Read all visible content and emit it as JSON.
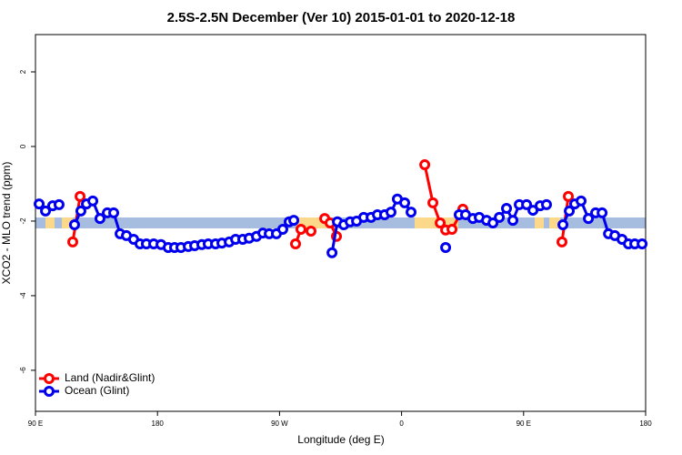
{
  "chart_data": {
    "type": "line",
    "title": "2.5S-2.5N December (Ver 10)   2015-01-01 to 2020-12-18",
    "xlabel": "Longitude (deg E)",
    "ylabel": "XCO2 - MLO trend (ppm)",
    "xlim": [
      90,
      540
    ],
    "xticks": [
      {
        "value": 90,
        "label": "90 E"
      },
      180,
      {
        "value": 270,
        "label": "90 W"
      },
      {
        "value": 360,
        "label": "0"
      },
      {
        "value": 450,
        "label": "90 E"
      },
      {
        "value": 540,
        "label": "180"
      }
    ],
    "ylim": [
      -7.1,
      3.0
    ],
    "yticks": [
      2,
      0,
      -2,
      -4,
      -6
    ],
    "legend": "lower left",
    "series": [
      {
        "name": "Land (Nadir&Glint)",
        "color": "#ff0000",
        "x": [
          117.5,
          122.9,
          null,
          281.8,
          285.8,
          293.2,
          null,
          303.3,
          307.3,
          312.0,
          null,
          377.1,
          383.1,
          388.5,
          392.5,
          397.2,
          405.2,
          null,
          478.3,
          483.0
        ],
        "values": [
          -2.56,
          -1.34,
          null,
          -2.61,
          -2.22,
          -2.27,
          null,
          -1.93,
          -2.05,
          -2.41,
          null,
          -0.49,
          -1.51,
          -2.05,
          -2.24,
          -2.22,
          -1.68,
          null,
          -2.56,
          -1.34
        ]
      },
      {
        "name": "Ocean (Glint)",
        "color": "#0000ee",
        "x": [
          92.7,
          97.4,
          102.7,
          107.4,
          null,
          118.8,
          123.5,
          127.6,
          132.3,
          137.6,
          143.0,
          147.7,
          152.4,
          157.1,
          162.4,
          167.1,
          171.8,
          177.2,
          182.6,
          187.9,
          192.6,
          197.3,
          202.7,
          207.4,
          212.7,
          217.4,
          222.8,
          227.5,
          232.9,
          237.6,
          242.9,
          247.6,
          253.0,
          257.7,
          262.4,
          267.7,
          272.4,
          277.1,
          280.5,
          null,
          308.7,
          312.7,
          317.4,
          322.1,
          326.8,
          332.1,
          337.5,
          342.2,
          347.5,
          352.2,
          356.9,
          362.3,
          367.0,
          null,
          392.5,
          null,
          402.5,
          407.2,
          412.6,
          417.3,
          422.7,
          427.4,
          432.1,
          437.4,
          442.1,
          446.8,
          452.2,
          456.9,
          462.2,
          466.9,
          null,
          479.0,
          483.7,
          487.7,
          492.4,
          497.8,
          503.1,
          507.9,
          512.6,
          517.3,
          522.6,
          527.3,
          532.0,
          537.4
        ],
        "values": [
          -1.54,
          -1.73,
          -1.59,
          -1.56,
          null,
          -2.1,
          -1.73,
          -1.54,
          -1.46,
          -1.93,
          -1.78,
          -1.78,
          -2.34,
          -2.39,
          -2.49,
          -2.61,
          -2.61,
          -2.61,
          -2.63,
          -2.71,
          -2.71,
          -2.71,
          -2.68,
          -2.66,
          -2.63,
          -2.61,
          -2.61,
          -2.59,
          -2.56,
          -2.49,
          -2.49,
          -2.46,
          -2.41,
          -2.32,
          -2.34,
          -2.34,
          -2.22,
          -2.02,
          -1.98,
          null,
          -2.85,
          -2.02,
          -2.1,
          -2.02,
          -2.0,
          -1.9,
          -1.9,
          -1.83,
          -1.83,
          -1.76,
          -1.41,
          -1.51,
          -1.76,
          null,
          -2.71,
          null,
          -1.83,
          -1.83,
          -1.93,
          -1.9,
          -1.98,
          -2.05,
          -1.9,
          -1.66,
          -1.98,
          -1.56,
          -1.56,
          -1.71,
          -1.59,
          -1.56,
          null,
          -2.1,
          -1.73,
          -1.54,
          -1.46,
          -1.93,
          -1.78,
          -1.78,
          -2.34,
          -2.39,
          -2.49,
          -2.61,
          -2.61,
          -2.61
        ]
      }
    ]
  }
}
